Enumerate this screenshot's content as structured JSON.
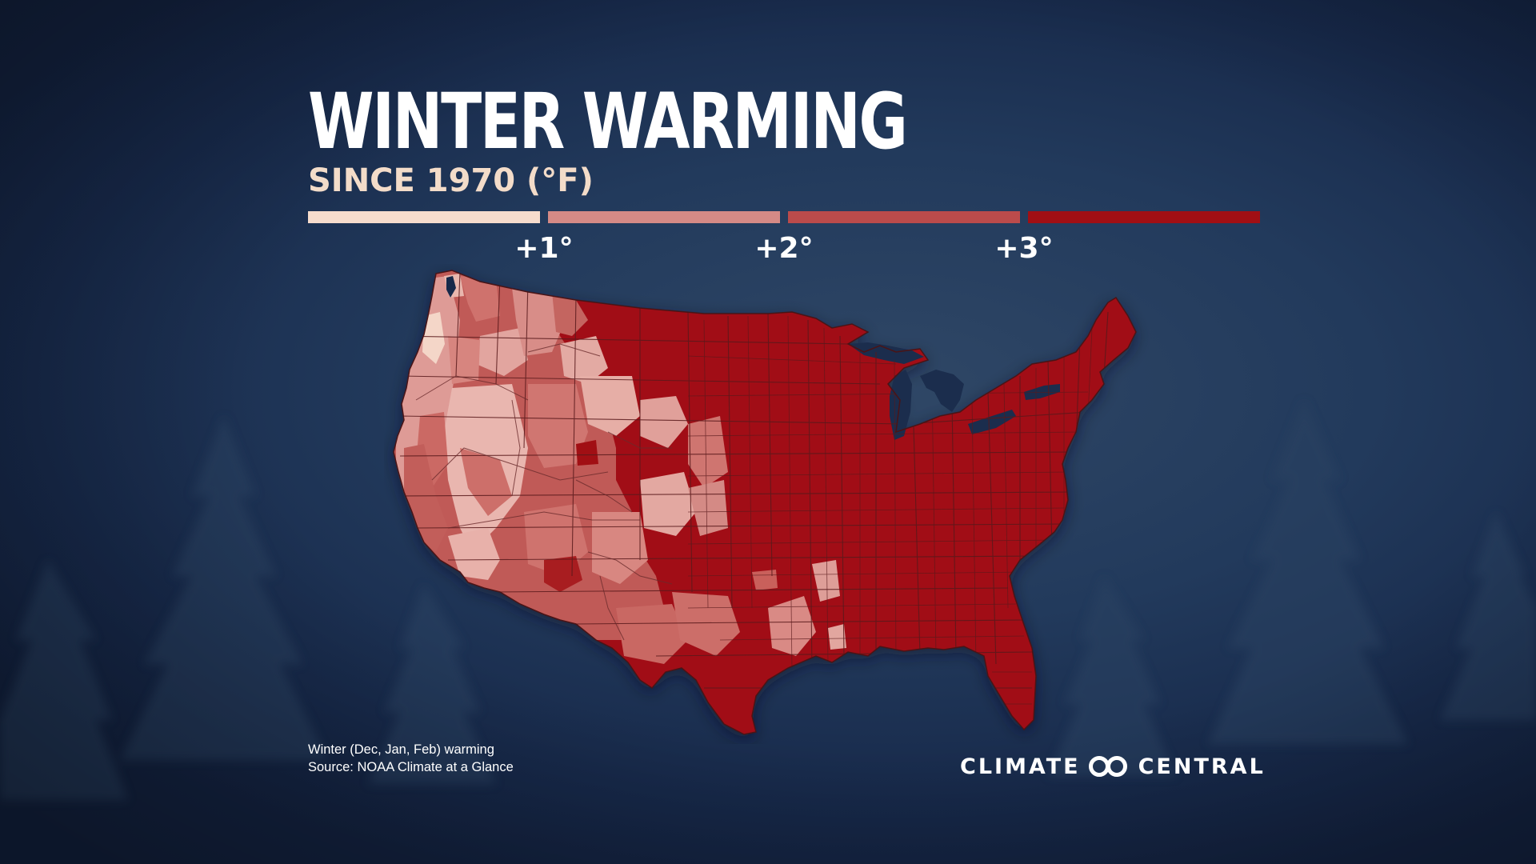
{
  "title": "WINTER WARMING",
  "subtitle": "SINCE 1970 (°F)",
  "legend": {
    "bins": [
      {
        "color": "#f6dccd"
      },
      {
        "color": "#d58a86"
      },
      {
        "color": "#bb4b4b"
      },
      {
        "color": "#a10f14"
      }
    ],
    "labels": [
      "+1°",
      "+2°",
      "+3°"
    ]
  },
  "footnote": {
    "line1": "Winter (Dec, Jan, Feb) warming",
    "line2": "Source: NOAA Climate at a Glance"
  },
  "brand": {
    "word1": "CLIMATE",
    "word2": "CENTRAL",
    "logo_icon": "interlocking-rings-icon"
  },
  "map": {
    "region": "Contiguous United States",
    "unit": "climate division",
    "colors": {
      "background_dark": "#17294a",
      "border": "#5a1a1c"
    }
  }
}
